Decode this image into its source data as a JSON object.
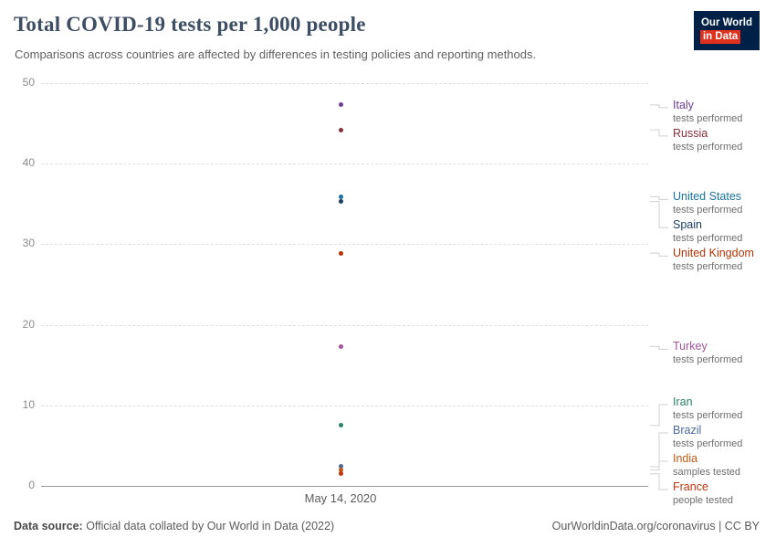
{
  "header": {
    "title": "Total COVID-19 tests per 1,000 people",
    "subtitle": "Comparisons across countries are affected by differences in testing policies and reporting methods.",
    "logo": {
      "line1": "Our World",
      "line2": "in Data",
      "bg": "#002147",
      "accent": "#e0301e"
    }
  },
  "chart_data": {
    "type": "scatter",
    "title": "Total COVID-19 tests per 1,000 people",
    "x_label": "May 14, 2020",
    "ylabel": "",
    "ylim": [
      0,
      50
    ],
    "yticks": [
      0,
      10,
      20,
      30,
      40,
      50
    ],
    "grid": true,
    "legend_position": "right",
    "series": [
      {
        "name": "Italy",
        "sublabel": "tests performed",
        "value": 47.3,
        "color": "#6D3E91"
      },
      {
        "name": "Russia",
        "sublabel": "tests performed",
        "value": 44.2,
        "color": "#883039"
      },
      {
        "name": "United States",
        "sublabel": "tests performed",
        "value": 35.9,
        "color": "#18739D"
      },
      {
        "name": "Spain",
        "sublabel": "tests performed",
        "value": 35.3,
        "color": "#1D3D63"
      },
      {
        "name": "United Kingdom",
        "sublabel": "tests performed",
        "value": 28.9,
        "color": "#B13507"
      },
      {
        "name": "Turkey",
        "sublabel": "tests performed",
        "value": 17.3,
        "color": "#A2559C"
      },
      {
        "name": "Iran",
        "sublabel": "tests performed",
        "value": 7.5,
        "color": "#2C8465"
      },
      {
        "name": "Brazil",
        "sublabel": "tests performed",
        "value": 2.4,
        "color": "#4C6A9C"
      },
      {
        "name": "India",
        "sublabel": "samples tested",
        "value": 2.0,
        "color": "#BE5915"
      },
      {
        "name": "France",
        "sublabel": "people tested",
        "value": 1.5,
        "color": "#BF360C"
      }
    ]
  },
  "footer": {
    "source_label": "Data source:",
    "source_text": " Official data collated by Our World in Data (2022)",
    "right_text": "OurWorldinData.org/coronavirus | CC BY"
  }
}
